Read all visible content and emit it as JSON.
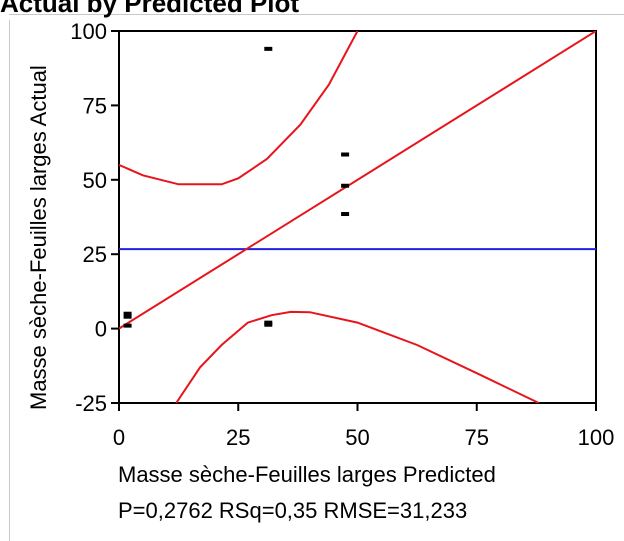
{
  "chart_data": {
    "type": "scatter",
    "title": "Actual by Predicted Plot",
    "xlabel": "Masse sèche-Feuilles larges Predicted",
    "ylabel": "Masse sèche-Feuilles larges Actual",
    "xlim": [
      0,
      100
    ],
    "ylim": [
      -25,
      100
    ],
    "x_ticks": [
      "0",
      "25",
      "50",
      "75",
      "100"
    ],
    "y_ticks": [
      "-25",
      "0",
      "25",
      "50",
      "75",
      "100"
    ],
    "points": [
      {
        "x": 1.8,
        "y": 5.0
      },
      {
        "x": 1.8,
        "y": 4.0
      },
      {
        "x": 1.8,
        "y": 1.0
      },
      {
        "x": 31.3,
        "y": 94.0
      },
      {
        "x": 31.3,
        "y": 2.0
      },
      {
        "x": 31.3,
        "y": 1.3
      },
      {
        "x": 47.4,
        "y": 58.5
      },
      {
        "x": 47.4,
        "y": 48.0
      },
      {
        "x": 47.4,
        "y": 38.5
      }
    ],
    "fit_line": [
      [
        0,
        0
      ],
      [
        100,
        100
      ]
    ],
    "mean_line": 26.7,
    "confidence_upper": [
      [
        0,
        55
      ],
      [
        5,
        51.5
      ],
      [
        12.5,
        48.5
      ],
      [
        21.5,
        48.5
      ],
      [
        25,
        50.5
      ],
      [
        31,
        57
      ],
      [
        38,
        68.5
      ],
      [
        44,
        82
      ],
      [
        50,
        100
      ]
    ],
    "confidence_lower": [
      [
        12,
        -25
      ],
      [
        17,
        -13
      ],
      [
        21.5,
        -5.5
      ],
      [
        27,
        2
      ],
      [
        32,
        4.5
      ],
      [
        36,
        5.6
      ],
      [
        40,
        5.5
      ],
      [
        50,
        2
      ],
      [
        62.5,
        -5.5
      ],
      [
        75,
        -15
      ],
      [
        88,
        -25
      ]
    ],
    "stats": "P=0,2762 RSq=0,35 RMSE=31,233",
    "colors": {
      "fit": "#e8141c",
      "mean": "#2020e0",
      "points": "#000000",
      "axis": "#000000"
    },
    "grid": false
  }
}
